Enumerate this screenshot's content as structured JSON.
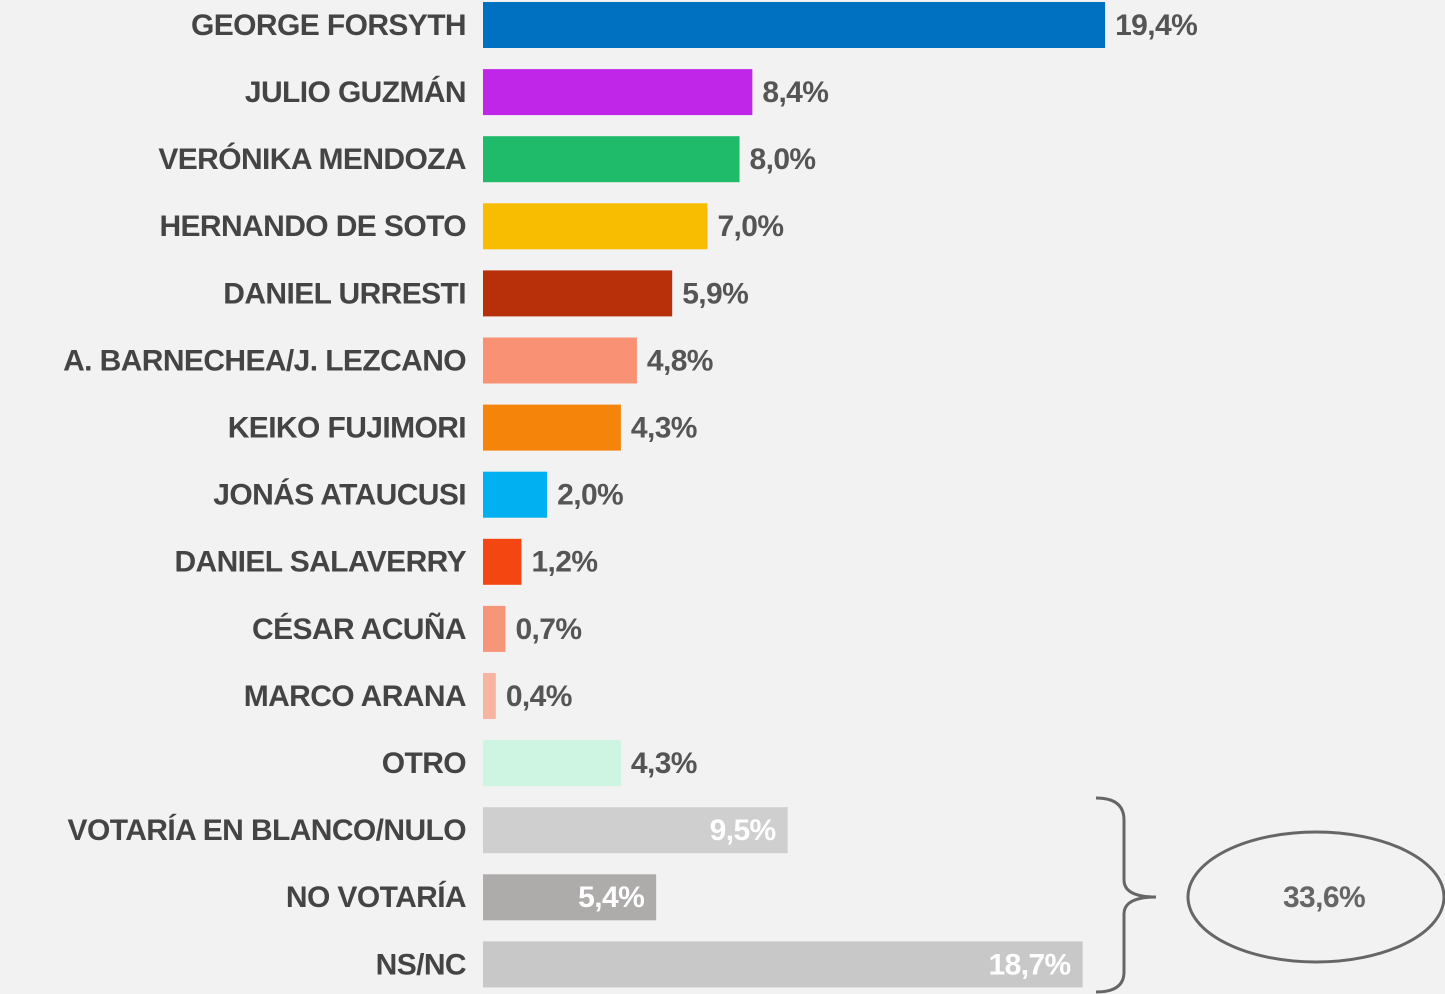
{
  "chart_data": {
    "type": "hbar",
    "categories": [
      "GEORGE FORSYTH",
      "JULIO GUZMÁN",
      "VERÓNIKA MENDOZA",
      "HERNANDO DE SOTO",
      "DANIEL URRESTI",
      "A. BARNECHEA/J. LEZCANO",
      "KEIKO FUJIMORI",
      "JONÁS ATAUCUSI",
      "DANIEL SALAVERRY",
      "CÉSAR ACUÑA",
      "MARCO ARANA",
      "OTRO",
      "VOTARÍA EN BLANCO/NULO",
      "NO VOTARÍA",
      "NS/NC"
    ],
    "values": [
      19.4,
      8.4,
      8.0,
      7.0,
      5.9,
      4.8,
      4.3,
      2.0,
      1.2,
      0.7,
      0.4,
      4.3,
      9.5,
      5.4,
      18.7
    ],
    "value_labels": [
      "19,4%",
      "8,4%",
      "8,0%",
      "7,0%",
      "5,9%",
      "4,8%",
      "4,3%",
      "2,0%",
      "1,2%",
      "0,7%",
      "0,4%",
      "4,3%",
      "9,5%",
      "5,4%",
      "18,7%"
    ],
    "colors": [
      "#0070c0",
      "#c026e8",
      "#1fba6a",
      "#f8bd00",
      "#b8300a",
      "#f99175",
      "#f5840b",
      "#00b0f0",
      "#f44611",
      "#f79579",
      "#f9b49f",
      "#cdf5e1",
      "#d0cfcf",
      "#aeabab",
      "#c8c8c8"
    ],
    "label_colors": [
      "#555555",
      "#555555",
      "#555555",
      "#555555",
      "#555555",
      "#555555",
      "#555555",
      "#555555",
      "#555555",
      "#555555",
      "#555555",
      "#555555",
      "#ffffff",
      "#ffffff",
      "#ffffff"
    ],
    "xlim": [
      0,
      30
    ],
    "annotation": "33,6%"
  }
}
